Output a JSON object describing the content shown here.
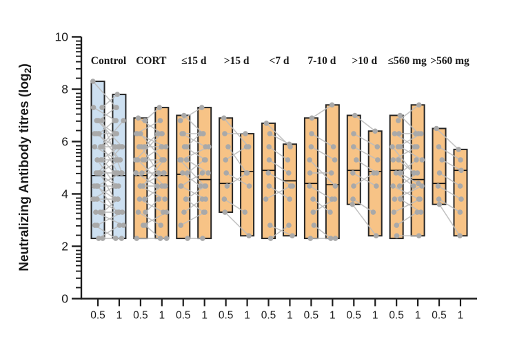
{
  "figure": {
    "background": "#ffffff"
  },
  "chart_data": {
    "type": "paired-floating-bar-scatter",
    "title": "",
    "ylabel": "Neutralizing Antibody titres (log₂)",
    "ylabel_parts": {
      "main": "Neutralizing Antibody titres (log",
      "sub": "2",
      "end": ")"
    },
    "xlabel": "",
    "ylim": [
      0,
      10
    ],
    "yticks": [
      0,
      2,
      4,
      6,
      8,
      10
    ],
    "y_minor_tick_offsets_below_major": [
      0.16,
      0.3,
      0.43,
      0.57,
      0.74,
      0.95,
      1.22,
      1.58
    ],
    "x_sublabels": [
      "0.5",
      "1"
    ],
    "grid": false,
    "legend_position": "none",
    "colors": {
      "control_fill": "#cde0f1",
      "treated_fill": "#f7c386",
      "bar_border": "#252525",
      "median_line": "#111111",
      "point": "#a9a9a9",
      "connector": "#bcbcbc",
      "axis": "#1c1c1c",
      "text": "#1a1a1a"
    },
    "groups": [
      {
        "label": "Control",
        "fill": "#cde0f1",
        "bars": [
          {
            "x_label": "0.5",
            "min": 2.3,
            "max": 8.3,
            "median": 4.7
          },
          {
            "x_label": "1",
            "min": 2.3,
            "max": 7.8,
            "median": 4.7
          }
        ],
        "pairs": [
          [
            8.3,
            7.3
          ],
          [
            7.3,
            7.8
          ],
          [
            7.3,
            6.8
          ],
          [
            6.8,
            7.3
          ],
          [
            6.8,
            6.3
          ],
          [
            6.8,
            5.8
          ],
          [
            6.3,
            6.8
          ],
          [
            6.3,
            6.3
          ],
          [
            6.3,
            5.8
          ],
          [
            6.3,
            5.3
          ],
          [
            5.8,
            6.3
          ],
          [
            5.8,
            5.8
          ],
          [
            5.8,
            5.3
          ],
          [
            5.8,
            4.8
          ],
          [
            5.3,
            5.8
          ],
          [
            5.3,
            5.3
          ],
          [
            5.3,
            4.8
          ],
          [
            5.3,
            4.3
          ],
          [
            4.8,
            5.3
          ],
          [
            4.8,
            4.8
          ],
          [
            4.8,
            4.8
          ],
          [
            4.8,
            4.3
          ],
          [
            4.8,
            3.8
          ],
          [
            4.3,
            4.8
          ],
          [
            4.3,
            4.3
          ],
          [
            4.3,
            3.8
          ],
          [
            4.3,
            3.3
          ],
          [
            3.8,
            4.3
          ],
          [
            3.8,
            3.8
          ],
          [
            3.8,
            3.3
          ],
          [
            3.3,
            3.8
          ],
          [
            3.3,
            3.3
          ],
          [
            3.3,
            2.8
          ],
          [
            2.8,
            3.3
          ],
          [
            2.8,
            2.3
          ],
          [
            2.3,
            2.8
          ],
          [
            2.3,
            2.3
          ],
          [
            6.8,
            4.8
          ],
          [
            4.8,
            5.8
          ],
          [
            5.8,
            6.8
          ]
        ]
      },
      {
        "label": "CORT",
        "fill": "#f7c386",
        "bars": [
          {
            "x_label": "0.5",
            "min": 2.3,
            "max": 6.9,
            "median": 4.7
          },
          {
            "x_label": "1",
            "min": 2.3,
            "max": 7.3,
            "median": 4.7
          }
        ],
        "pairs": [
          [
            6.9,
            6.3
          ],
          [
            6.8,
            7.3
          ],
          [
            6.3,
            6.8
          ],
          [
            6.3,
            5.8
          ],
          [
            6.3,
            5.3
          ],
          [
            5.8,
            6.3
          ],
          [
            5.8,
            5.8
          ],
          [
            5.8,
            4.8
          ],
          [
            5.3,
            5.8
          ],
          [
            5.3,
            5.3
          ],
          [
            5.3,
            4.3
          ],
          [
            4.8,
            5.3
          ],
          [
            4.8,
            4.8
          ],
          [
            4.8,
            4.3
          ],
          [
            4.3,
            4.8
          ],
          [
            4.3,
            4.3
          ],
          [
            4.3,
            3.8
          ],
          [
            3.8,
            4.3
          ],
          [
            3.8,
            3.3
          ],
          [
            3.3,
            3.8
          ],
          [
            3.3,
            2.8
          ],
          [
            2.8,
            3.3
          ],
          [
            2.8,
            2.3
          ],
          [
            2.3,
            2.3
          ],
          [
            5.3,
            6.3
          ],
          [
            4.3,
            5.3
          ]
        ]
      },
      {
        "label": "≤15 d",
        "fill": "#f7c386",
        "bars": [
          {
            "x_label": "0.5",
            "min": 2.3,
            "max": 7.0,
            "median": 4.75
          },
          {
            "x_label": "1",
            "min": 2.3,
            "max": 7.3,
            "median": 4.55
          }
        ],
        "pairs": [
          [
            7.0,
            6.3
          ],
          [
            6.8,
            7.3
          ],
          [
            6.3,
            6.3
          ],
          [
            6.3,
            5.8
          ],
          [
            5.8,
            6.3
          ],
          [
            5.8,
            5.3
          ],
          [
            5.3,
            5.8
          ],
          [
            5.3,
            4.8
          ],
          [
            4.8,
            5.3
          ],
          [
            4.8,
            4.3
          ],
          [
            4.3,
            4.8
          ],
          [
            4.3,
            3.8
          ],
          [
            3.8,
            4.3
          ],
          [
            3.8,
            3.3
          ],
          [
            3.3,
            3.8
          ],
          [
            2.8,
            3.3
          ],
          [
            2.3,
            2.3
          ],
          [
            5.3,
            4.3
          ]
        ]
      },
      {
        "label": ">15 d",
        "fill": "#f7c386",
        "bars": [
          {
            "x_label": "0.5",
            "min": 3.3,
            "max": 6.9,
            "median": 4.4
          },
          {
            "x_label": "1",
            "min": 2.4,
            "max": 6.3,
            "median": 4.85
          }
        ],
        "pairs": [
          [
            6.9,
            5.8
          ],
          [
            6.3,
            6.3
          ],
          [
            5.8,
            4.8
          ],
          [
            5.3,
            5.8
          ],
          [
            4.8,
            4.3
          ],
          [
            4.3,
            4.8
          ],
          [
            3.8,
            3.3
          ],
          [
            3.3,
            2.4
          ]
        ]
      },
      {
        "label": "<7 d",
        "fill": "#f7c386",
        "bars": [
          {
            "x_label": "0.5",
            "min": 2.3,
            "max": 6.7,
            "median": 4.9
          },
          {
            "x_label": "1",
            "min": 2.4,
            "max": 5.9,
            "median": 4.5
          }
        ],
        "pairs": [
          [
            6.7,
            5.8
          ],
          [
            6.3,
            5.9
          ],
          [
            5.8,
            5.3
          ],
          [
            5.3,
            4.8
          ],
          [
            4.8,
            4.3
          ],
          [
            4.3,
            3.8
          ],
          [
            3.8,
            4.3
          ],
          [
            2.8,
            2.4
          ],
          [
            2.3,
            2.8
          ]
        ]
      },
      {
        "label": "7-10 d",
        "fill": "#f7c386",
        "bars": [
          {
            "x_label": "0.5",
            "min": 2.3,
            "max": 6.9,
            "median": 4.4
          },
          {
            "x_label": "1",
            "min": 2.3,
            "max": 7.4,
            "median": 4.35
          }
        ],
        "pairs": [
          [
            6.9,
            7.4
          ],
          [
            6.3,
            5.8
          ],
          [
            5.8,
            5.3
          ],
          [
            5.3,
            4.3
          ],
          [
            4.8,
            4.8
          ],
          [
            4.3,
            3.8
          ],
          [
            3.8,
            3.3
          ],
          [
            3.3,
            3.8
          ],
          [
            2.8,
            2.3
          ],
          [
            2.3,
            2.3
          ]
        ]
      },
      {
        "label": ">10 d",
        "fill": "#f7c386",
        "bars": [
          {
            "x_label": "0.5",
            "min": 3.6,
            "max": 7.0,
            "median": 4.9
          },
          {
            "x_label": "1",
            "min": 2.4,
            "max": 6.4,
            "median": 4.85
          }
        ],
        "pairs": [
          [
            7.0,
            6.4
          ],
          [
            6.3,
            5.8
          ],
          [
            5.8,
            5.3
          ],
          [
            5.3,
            4.8
          ],
          [
            4.8,
            4.3
          ],
          [
            4.3,
            4.8
          ],
          [
            3.8,
            3.3
          ],
          [
            3.6,
            2.4
          ]
        ]
      },
      {
        "label": "≤560 mg",
        "fill": "#f7c386",
        "bars": [
          {
            "x_label": "0.5",
            "min": 2.3,
            "max": 7.0,
            "median": 4.9
          },
          {
            "x_label": "1",
            "min": 2.4,
            "max": 7.4,
            "median": 4.55
          }
        ],
        "pairs": [
          [
            7.0,
            6.3
          ],
          [
            6.8,
            7.4
          ],
          [
            6.3,
            6.3
          ],
          [
            6.3,
            5.8
          ],
          [
            5.8,
            6.3
          ],
          [
            5.8,
            5.3
          ],
          [
            5.3,
            5.8
          ],
          [
            5.3,
            4.8
          ],
          [
            4.8,
            5.3
          ],
          [
            4.8,
            4.3
          ],
          [
            4.3,
            4.8
          ],
          [
            4.3,
            3.8
          ],
          [
            3.8,
            4.3
          ],
          [
            3.8,
            3.3
          ],
          [
            3.3,
            3.8
          ],
          [
            2.8,
            3.3
          ],
          [
            2.4,
            2.4
          ],
          [
            5.8,
            4.8
          ],
          [
            4.8,
            4.4
          ]
        ]
      },
      {
        "label": ">560 mg",
        "fill": "#f7c386",
        "bars": [
          {
            "x_label": "0.5",
            "min": 3.6,
            "max": 6.5,
            "median": 4.4
          },
          {
            "x_label": "1",
            "min": 2.4,
            "max": 5.7,
            "median": 4.9
          }
        ],
        "pairs": [
          [
            6.5,
            5.7
          ],
          [
            5.8,
            5.3
          ],
          [
            5.3,
            4.9
          ],
          [
            4.8,
            4.3
          ],
          [
            4.3,
            3.8
          ],
          [
            3.8,
            3.3
          ],
          [
            3.6,
            2.4
          ]
        ]
      }
    ]
  }
}
